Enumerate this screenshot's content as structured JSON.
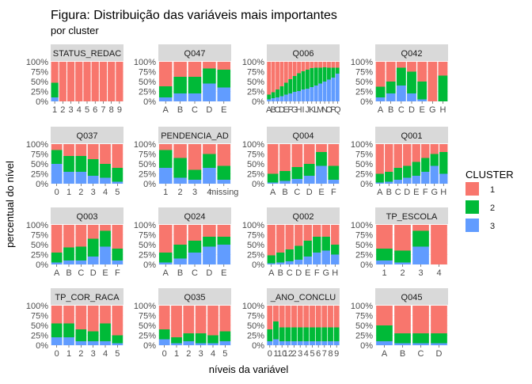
{
  "chart_data": {
    "type": "bar",
    "title": "Figura: Distribuição das variáveis mais importantes",
    "subtitle": "por cluster",
    "xlabel": "níveis da variável",
    "ylabel": "percentual do nível",
    "ylim": [
      0,
      1
    ],
    "y_ticks": [
      "0%",
      "25%",
      "50%",
      "75%",
      "100%"
    ],
    "grid": true,
    "legend": {
      "title": "CLUSTER",
      "position": "right",
      "entries": [
        "1",
        "2",
        "3"
      ]
    },
    "colors": {
      "1": "#F8766D",
      "2": "#00BA38",
      "3": "#619CFF"
    },
    "stacking": "fill",
    "facets": [
      {
        "strip": "STATUS_REDAC",
        "categories": [
          "1",
          "2",
          "3",
          "4",
          "5",
          "6",
          "7",
          "8",
          "9"
        ],
        "cluster3": [
          0.1,
          0,
          0,
          0,
          0,
          0,
          0,
          0,
          0
        ],
        "cluster2": [
          0.37,
          0,
          0,
          0,
          0,
          0,
          0,
          0,
          0
        ]
      },
      {
        "strip": "Q047",
        "categories": [
          "A",
          "B",
          "C",
          "D",
          "E"
        ],
        "cluster3": [
          0.1,
          0.2,
          0.2,
          0.45,
          0.35
        ],
        "cluster2": [
          0.28,
          0.42,
          0.42,
          0.38,
          0.45
        ]
      },
      {
        "strip": "Q006",
        "categories": [
          "A",
          "B",
          "C",
          "D",
          "E",
          "F",
          "G",
          "H",
          "I",
          "J",
          "K",
          "L",
          "M",
          "N",
          "O",
          "P",
          "Q"
        ],
        "cluster3": [
          0.05,
          0.08,
          0.1,
          0.13,
          0.17,
          0.2,
          0.24,
          0.26,
          0.3,
          0.32,
          0.36,
          0.4,
          0.45,
          0.5,
          0.55,
          0.6,
          0.7
        ],
        "cluster2": [
          0.12,
          0.15,
          0.2,
          0.25,
          0.3,
          0.36,
          0.4,
          0.45,
          0.46,
          0.48,
          0.48,
          0.45,
          0.4,
          0.36,
          0.3,
          0.25,
          0.15
        ]
      },
      {
        "strip": "Q042",
        "categories": [
          "A",
          "B",
          "C",
          "D",
          "E",
          "G",
          "H"
        ],
        "cluster3": [
          0.1,
          0.2,
          0.4,
          0.2,
          0.05,
          0,
          0
        ],
        "cluster2": [
          0.27,
          0.3,
          0.45,
          0.55,
          0.45,
          0,
          0.65
        ]
      },
      {
        "strip": "Q037",
        "categories": [
          "0",
          "1",
          "2",
          "3",
          "4",
          "5"
        ],
        "cluster3": [
          0.5,
          0.3,
          0.3,
          0.2,
          0.15,
          0.05
        ],
        "cluster2": [
          0.35,
          0.4,
          0.4,
          0.42,
          0.35,
          0.35
        ]
      },
      {
        "strip": "PENDENCIA_AD",
        "categories": [
          "1",
          "2",
          "3",
          "4",
          "missing"
        ],
        "cluster3": [
          0.4,
          0.15,
          0.1,
          0.4,
          0.1
        ],
        "cluster2": [
          0.45,
          0.5,
          0.25,
          0.35,
          0.35
        ]
      },
      {
        "strip": "Q004",
        "categories": [
          "A",
          "B",
          "C",
          "D",
          "E",
          "F"
        ],
        "cluster3": [
          0.03,
          0.07,
          0.12,
          0.2,
          0.45,
          0.1
        ],
        "cluster2": [
          0.22,
          0.25,
          0.3,
          0.3,
          0.35,
          0.35
        ]
      },
      {
        "strip": "Q001",
        "categories": [
          "A",
          "B",
          "C",
          "D",
          "E",
          "F",
          "G",
          "H"
        ],
        "cluster3": [
          0.03,
          0.05,
          0.1,
          0.15,
          0.2,
          0.3,
          0.45,
          0.25
        ],
        "cluster2": [
          0.22,
          0.25,
          0.3,
          0.3,
          0.35,
          0.35,
          0.3,
          0.55
        ]
      },
      {
        "strip": "Q003",
        "categories": [
          "A",
          "B",
          "C",
          "D",
          "E",
          "F"
        ],
        "cluster3": [
          0.05,
          0.1,
          0.1,
          0.2,
          0.45,
          0.1
        ],
        "cluster2": [
          0.25,
          0.33,
          0.35,
          0.45,
          0.4,
          0.3
        ]
      },
      {
        "strip": "Q024",
        "categories": [
          "A",
          "B",
          "C",
          "D",
          "E"
        ],
        "cluster3": [
          0.05,
          0.15,
          0.3,
          0.45,
          0.5
        ],
        "cluster2": [
          0.25,
          0.35,
          0.3,
          0.25,
          0.2
        ]
      },
      {
        "strip": "Q002",
        "categories": [
          "A",
          "B",
          "C",
          "D",
          "E",
          "F",
          "G",
          "H"
        ],
        "cluster3": [
          0.03,
          0.05,
          0.08,
          0.12,
          0.2,
          0.3,
          0.35,
          0.25
        ],
        "cluster2": [
          0.2,
          0.25,
          0.3,
          0.35,
          0.4,
          0.4,
          0.35,
          0.25
        ]
      },
      {
        "strip": "TP_ESCOLA",
        "categories": [
          "1",
          "2",
          "3",
          "4"
        ],
        "cluster3": [
          0.1,
          0.05,
          0.45,
          0
        ],
        "cluster2": [
          0.3,
          0.3,
          0.4,
          0
        ]
      },
      {
        "strip": "TP_COR_RACA",
        "categories": [
          "0",
          "1",
          "2",
          "3",
          "4",
          "5"
        ],
        "cluster3": [
          0.2,
          0.2,
          0.1,
          0.1,
          0.1,
          0.05
        ],
        "cluster2": [
          0.35,
          0.35,
          0.3,
          0.25,
          0.45,
          0.2
        ]
      },
      {
        "strip": "Q035",
        "categories": [
          "0",
          "1",
          "2",
          "3",
          "4",
          "5"
        ],
        "cluster3": [
          0.15,
          0.05,
          0.1,
          0.05,
          0.05,
          0.1
        ],
        "cluster2": [
          0.25,
          0.15,
          0.2,
          0.25,
          0.2,
          0.25
        ]
      },
      {
        "strip": "_ANO_CONCLU",
        "categories": [
          "0",
          "1",
          "10",
          "12",
          "2",
          "3",
          "4",
          "5",
          "6",
          "7",
          "8",
          "9"
        ],
        "cluster3": [
          0.1,
          0.15,
          0.1,
          0.1,
          0.1,
          0.1,
          0.1,
          0.1,
          0.1,
          0.1,
          0.1,
          0.1
        ],
        "cluster2": [
          0.3,
          0.45,
          0.35,
          0.35,
          0.35,
          0.35,
          0.35,
          0.35,
          0.35,
          0.35,
          0.35,
          0.35
        ],
        "tick_labels": [
          "0",
          "1",
          "10",
          "12",
          "2",
          "3",
          "4",
          "5",
          "6",
          "7",
          "8",
          "9"
        ]
      },
      {
        "strip": "Q045",
        "categories": [
          "A",
          "B",
          "C",
          "D"
        ],
        "cluster3": [
          0.1,
          0.05,
          0.05,
          0.05
        ],
        "cluster2": [
          0.4,
          0.25,
          0.25,
          0.25
        ]
      }
    ]
  }
}
